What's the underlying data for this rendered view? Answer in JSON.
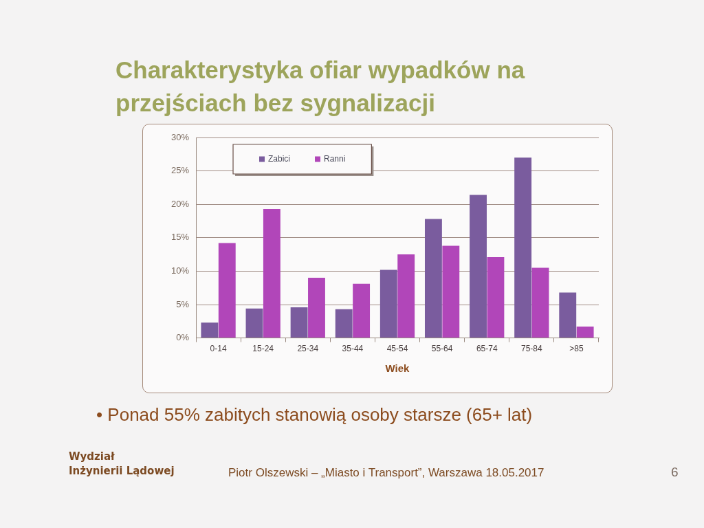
{
  "chart_data": {
    "type": "bar",
    "title": "Charakterystyka ofiar wypadków na przejściach bez sygnalizacji",
    "xlabel": "Wiek",
    "categories": [
      "0-14",
      "15-24",
      "25-34",
      "35-44",
      "45-54",
      "55-64",
      "65-74",
      "75-84",
      ">85"
    ],
    "series": [
      {
        "name": "Zabici",
        "color": "#7a5c9e",
        "values": [
          2.3,
          4.4,
          4.6,
          4.3,
          10.2,
          17.8,
          21.4,
          27.0,
          6.8
        ]
      },
      {
        "name": "Ranni",
        "color": "#b146b9",
        "values": [
          14.2,
          19.3,
          9.0,
          8.1,
          12.5,
          13.8,
          12.1,
          10.5,
          1.7
        ]
      }
    ],
    "ylim": [
      0,
      30
    ],
    "yticks": [
      {
        "value": 0,
        "label": "0%"
      },
      {
        "value": 5,
        "label": "5%"
      },
      {
        "value": 10,
        "label": "10%"
      },
      {
        "value": 15,
        "label": "15%"
      },
      {
        "value": 20,
        "label": "20%"
      },
      {
        "value": 25,
        "label": "25%"
      },
      {
        "value": 30,
        "label": "30%"
      }
    ],
    "grid": "y",
    "legend": "top left",
    "annotations": [
      "• Ponad 55% zabitych stanowią osoby starsze (65+ lat)",
      "Wydział\nInżynierii Lądowej",
      "Piotr Olszewski – „Miasto i Transport”, Warszawa 18.05.2017",
      "6"
    ]
  }
}
